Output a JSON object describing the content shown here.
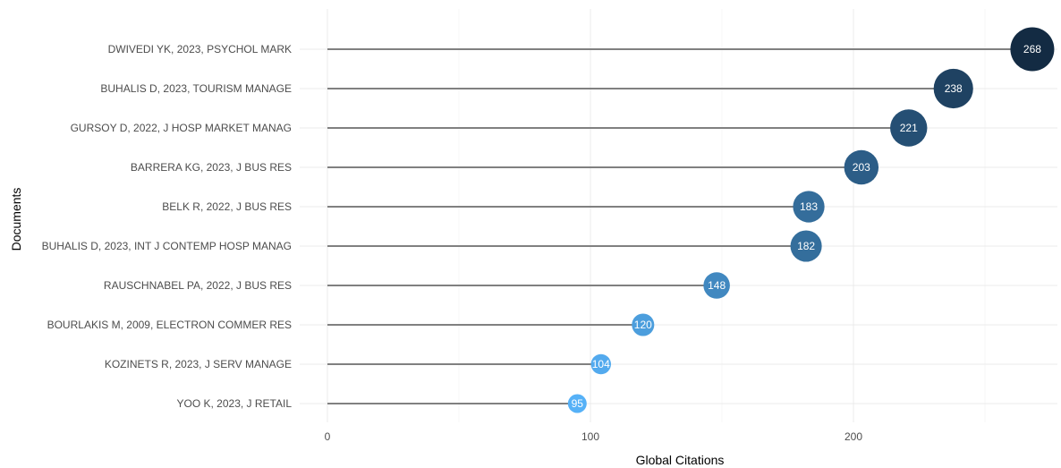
{
  "chart_data": {
    "type": "scatter",
    "xlabel": "Global Citations",
    "ylabel": "Documents",
    "xlim": [
      -4,
      275
    ],
    "xticks": [
      0,
      100,
      200
    ],
    "grid": true,
    "legend": "none",
    "color_scale": [
      "#56b1f7",
      "#132b43"
    ],
    "categories": [
      "DWIVEDI YK, 2023, PSYCHOL MARK",
      "BUHALIS D, 2023, TOURISM MANAGE",
      "GURSOY D, 2022, J HOSP MARKET MANAG",
      "BARRERA KG, 2023, J BUS RES",
      "BELK R, 2022, J BUS RES",
      "BUHALIS D, 2023, INT J CONTEMP HOSP MANAG",
      "RAUSCHNABEL PA, 2022, J BUS RES",
      "BOURLAKIS M, 2009, ELECTRON COMMER RES",
      "KOZINETS R, 2023, J SERV MANAGE",
      "YOO K, 2023, J RETAIL"
    ],
    "values": [
      268,
      238,
      221,
      203,
      183,
      182,
      148,
      120,
      104,
      95
    ],
    "labels": [
      "268",
      "238",
      "221",
      "203",
      "183",
      "182",
      "148",
      "120",
      "104",
      "95"
    ]
  }
}
